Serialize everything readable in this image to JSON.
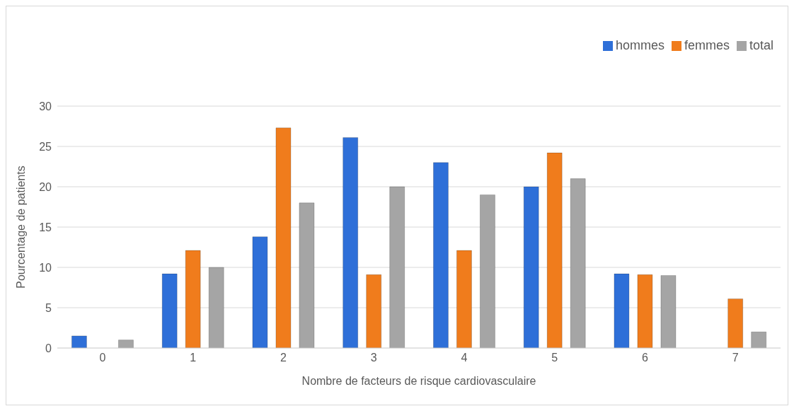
{
  "chart_data": {
    "type": "bar",
    "xlabel": "Nombre de facteurs de risque cardiovasculaire",
    "ylabel": "Pourcentage de patients",
    "categories": [
      "0",
      "1",
      "2",
      "3",
      "4",
      "5",
      "6",
      "7"
    ],
    "series": [
      {
        "name": "hommes",
        "color": "#2e6fd8",
        "values": [
          1.5,
          9.2,
          13.8,
          26.1,
          23,
          20,
          9.2,
          0
        ]
      },
      {
        "name": "femmes",
        "color": "#f07c1c",
        "values": [
          0,
          12.1,
          27.3,
          9.1,
          12.1,
          24.2,
          9.1,
          6.1
        ]
      },
      {
        "name": "total",
        "color": "#a5a5a5",
        "values": [
          1,
          10,
          18,
          20,
          19,
          21,
          9,
          2
        ]
      }
    ],
    "ylim": [
      0,
      30
    ],
    "yticks": [
      0,
      5,
      10,
      15,
      20,
      25,
      30
    ],
    "grid": "y",
    "legend": "top right"
  }
}
